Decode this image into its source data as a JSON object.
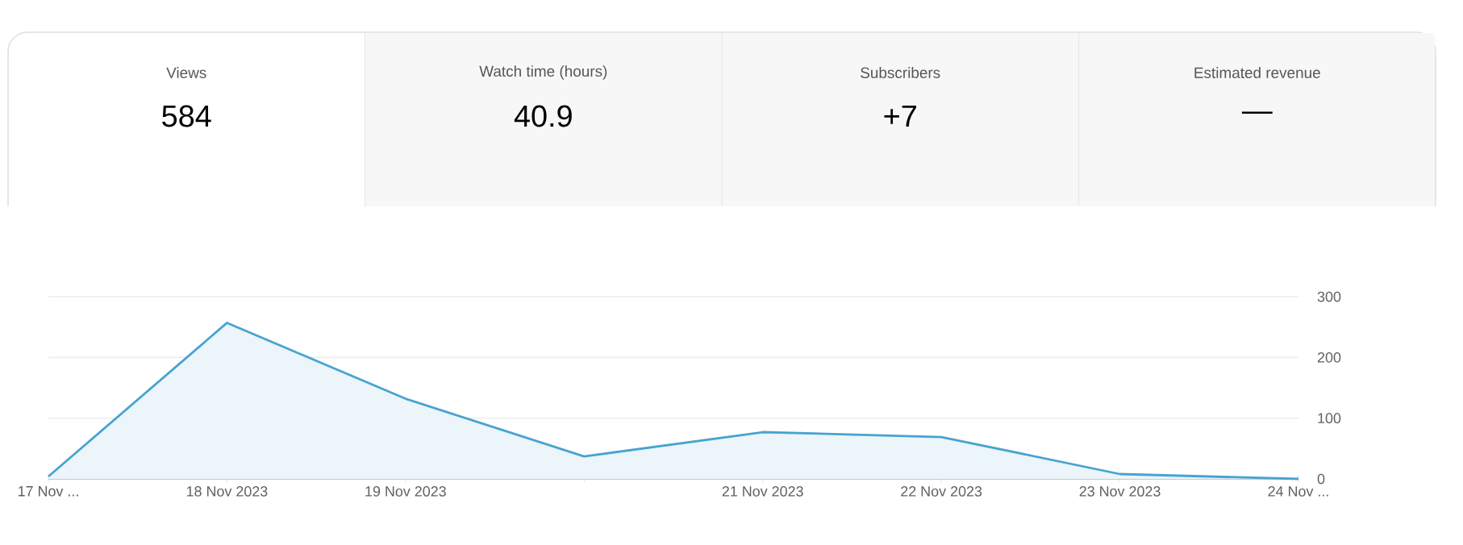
{
  "chart_data": {
    "type": "area",
    "annotations": [
      "Views",
      "584",
      "Watch time (hours)",
      "40.9",
      "Subscribers",
      "+7",
      "Estimated revenue",
      "—"
    ],
    "x": [
      "2023-11-17",
      "2023-11-18",
      "2023-11-19",
      "2023-11-20",
      "2023-11-21",
      "2023-11-22",
      "2023-11-23",
      "2023-11-24"
    ],
    "values": [
      4,
      257,
      132,
      37,
      77,
      69,
      8,
      0
    ],
    "color": "#48a3d0",
    "xlim": [
      "2023-11-17",
      "2023-11-24"
    ],
    "xticks": [
      {
        "value": "2023-11-17",
        "label": "17 Nov ..."
      },
      {
        "value": "2023-11-18",
        "label": "18 Nov 2023"
      },
      {
        "value": "2023-11-19",
        "label": "19 Nov 2023"
      },
      {
        "value": "2023-11-20",
        "label": null
      },
      {
        "value": "2023-11-21",
        "label": "21 Nov 2023"
      },
      {
        "value": "2023-11-22",
        "label": "22 Nov 2023"
      },
      {
        "value": "2023-11-23",
        "label": "23 Nov 2023"
      },
      {
        "value": "2023-11-24",
        "label": "24 Nov ..."
      }
    ],
    "ylim": [
      0,
      300
    ],
    "yticks": [
      0,
      100,
      200,
      300
    ],
    "grid": "y",
    "marker": "none"
  }
}
